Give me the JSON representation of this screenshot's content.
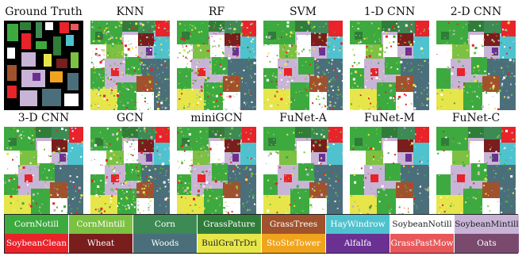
{
  "panels": [
    {
      "label": "Ground Truth",
      "kind": "gt",
      "noise": 0
    },
    {
      "label": "KNN",
      "kind": "pred",
      "noise": 0.42
    },
    {
      "label": "RF",
      "kind": "pred",
      "noise": 0.38
    },
    {
      "label": "SVM",
      "kind": "pred",
      "noise": 0.34
    },
    {
      "label": "1-D CNN",
      "kind": "pred",
      "noise": 0.3
    },
    {
      "label": "2-D CNN",
      "kind": "pred",
      "noise": 0.22
    },
    {
      "label": "3-D CNN",
      "kind": "pred",
      "noise": 0.24
    },
    {
      "label": "GCN",
      "kind": "pred",
      "noise": 0.4
    },
    {
      "label": "miniGCN",
      "kind": "pred",
      "noise": 0.32
    },
    {
      "label": "FuNet-A",
      "kind": "pred",
      "noise": 0.18
    },
    {
      "label": "FuNet-M",
      "kind": "pred",
      "noise": 0.17
    },
    {
      "label": "FuNet-C",
      "kind": "pred",
      "noise": 0.16
    }
  ],
  "legend": [
    {
      "label": "CornNotill",
      "color": "#3daa3f",
      "text_color": "#ffffff"
    },
    {
      "label": "CornMintill",
      "color": "#7cc142",
      "text_color": "#ffffff"
    },
    {
      "label": "Corn",
      "color": "#3d8a55",
      "text_color": "#ffffff"
    },
    {
      "label": "GrassPature",
      "color": "#2f7d39",
      "text_color": "#ffffff"
    },
    {
      "label": "GrassTrees",
      "color": "#a0522d",
      "text_color": "#ffffff"
    },
    {
      "label": "HayWindrow",
      "color": "#4ec3cf",
      "text_color": "#ffffff"
    },
    {
      "label": "SoybeanNotill",
      "color": "#ffffff",
      "text_color": "#222222"
    },
    {
      "label": "SoybeanMintill",
      "color": "#c8b4d6",
      "text_color": "#222222"
    },
    {
      "label": "SoybeanClean",
      "color": "#e8232a",
      "text_color": "#ffffff"
    },
    {
      "label": "Wheat",
      "color": "#7a1d1d",
      "text_color": "#ffffff"
    },
    {
      "label": "Woods",
      "color": "#4a6f7a",
      "text_color": "#ffffff"
    },
    {
      "label": "BuilGraTrDri",
      "color": "#e6e64a",
      "text_color": "#222222"
    },
    {
      "label": "StoSteTower",
      "color": "#f0a41e",
      "text_color": "#ffffff"
    },
    {
      "label": "Alfalfa",
      "color": "#6a3192",
      "text_color": "#ffffff"
    },
    {
      "label": "GrassPastMow",
      "color": "#e8585a",
      "text_color": "#ffffff"
    },
    {
      "label": "Oats",
      "color": "#7a4a6e",
      "text_color": "#ffffff"
    }
  ]
}
